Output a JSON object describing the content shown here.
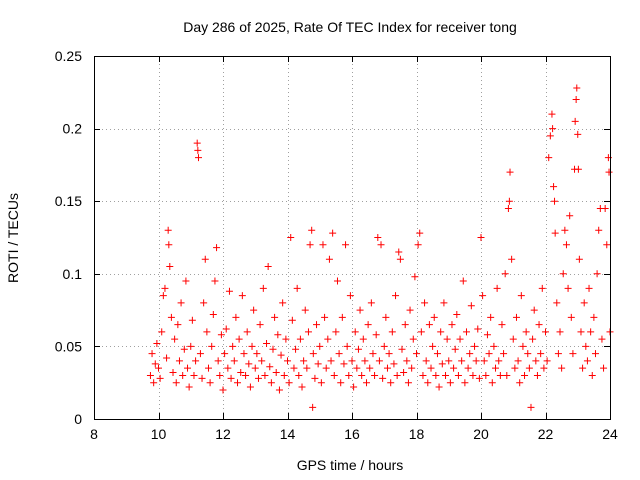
{
  "chart_data": {
    "type": "scatter",
    "title": "Day 286 of 2025, Rate Of TEC Index for receiver tong",
    "xlabel": "GPS time / hours",
    "ylabel": "ROTI / TECUs",
    "xlim": [
      8,
      24
    ],
    "ylim": [
      0,
      0.25
    ],
    "xticks": [
      8,
      10,
      12,
      14,
      16,
      18,
      20,
      22,
      24
    ],
    "xtick_labels": [
      "8",
      "10",
      "12",
      "14",
      "16",
      "18",
      "20",
      "22",
      "24"
    ],
    "yticks": [
      0,
      0.05,
      0.1,
      0.15,
      0.2,
      0.25
    ],
    "ytick_labels": [
      "0",
      "0.05",
      "0.1",
      "0.15",
      "0.2",
      "0.25"
    ],
    "grid": true,
    "marker": "+",
    "color": "#ff0000",
    "series": [
      {
        "name": "ROTI",
        "points": [
          [
            9.75,
            0.03
          ],
          [
            9.8,
            0.045
          ],
          [
            9.85,
            0.025
          ],
          [
            9.9,
            0.038
          ],
          [
            9.95,
            0.052
          ],
          [
            10.0,
            0.035
          ],
          [
            10.05,
            0.028
          ],
          [
            10.1,
            0.06
          ],
          [
            10.15,
            0.085
          ],
          [
            10.2,
            0.09
          ],
          [
            10.25,
            0.042
          ],
          [
            10.3,
            0.13
          ],
          [
            10.32,
            0.12
          ],
          [
            10.35,
            0.105
          ],
          [
            10.4,
            0.07
          ],
          [
            10.45,
            0.032
          ],
          [
            10.5,
            0.055
          ],
          [
            10.55,
            0.025
          ],
          [
            10.6,
            0.065
          ],
          [
            10.65,
            0.04
          ],
          [
            10.7,
            0.08
          ],
          [
            10.75,
            0.03
          ],
          [
            10.8,
            0.048
          ],
          [
            10.85,
            0.095
          ],
          [
            10.9,
            0.035
          ],
          [
            10.95,
            0.022
          ],
          [
            11.0,
            0.05
          ],
          [
            11.05,
            0.068
          ],
          [
            11.1,
            0.03
          ],
          [
            11.15,
            0.04
          ],
          [
            11.2,
            0.19
          ],
          [
            11.22,
            0.185
          ],
          [
            11.24,
            0.18
          ],
          [
            11.3,
            0.045
          ],
          [
            11.35,
            0.028
          ],
          [
            11.4,
            0.08
          ],
          [
            11.45,
            0.11
          ],
          [
            11.5,
            0.06
          ],
          [
            11.55,
            0.035
          ],
          [
            11.6,
            0.025
          ],
          [
            11.65,
            0.05
          ],
          [
            11.7,
            0.072
          ],
          [
            11.75,
            0.095
          ],
          [
            11.8,
            0.118
          ],
          [
            11.85,
            0.04
          ],
          [
            11.9,
            0.03
          ],
          [
            11.95,
            0.058
          ],
          [
            12.0,
            0.02
          ],
          [
            12.05,
            0.045
          ],
          [
            12.1,
            0.062
          ],
          [
            12.15,
            0.035
          ],
          [
            12.2,
            0.088
          ],
          [
            12.25,
            0.028
          ],
          [
            12.3,
            0.05
          ],
          [
            12.35,
            0.04
          ],
          [
            12.4,
            0.07
          ],
          [
            12.45,
            0.025
          ],
          [
            12.5,
            0.055
          ],
          [
            12.55,
            0.032
          ],
          [
            12.6,
            0.085
          ],
          [
            12.65,
            0.045
          ],
          [
            12.7,
            0.03
          ],
          [
            12.75,
            0.06
          ],
          [
            12.8,
            0.038
          ],
          [
            12.85,
            0.022
          ],
          [
            12.9,
            0.05
          ],
          [
            12.95,
            0.075
          ],
          [
            13.0,
            0.035
          ],
          [
            13.05,
            0.045
          ],
          [
            13.1,
            0.028
          ],
          [
            13.15,
            0.065
          ],
          [
            13.2,
            0.04
          ],
          [
            13.25,
            0.09
          ],
          [
            13.3,
            0.03
          ],
          [
            13.35,
            0.052
          ],
          [
            13.4,
            0.105
          ],
          [
            13.45,
            0.036
          ],
          [
            13.5,
            0.025
          ],
          [
            13.55,
            0.048
          ],
          [
            13.6,
            0.07
          ],
          [
            13.65,
            0.032
          ],
          [
            13.7,
            0.058
          ],
          [
            13.75,
            0.02
          ],
          [
            13.8,
            0.044
          ],
          [
            13.85,
            0.08
          ],
          [
            13.9,
            0.03
          ],
          [
            13.95,
            0.055
          ],
          [
            14.0,
            0.04
          ],
          [
            14.05,
            0.025
          ],
          [
            14.1,
            0.125
          ],
          [
            14.15,
            0.068
          ],
          [
            14.2,
            0.035
          ],
          [
            14.25,
            0.048
          ],
          [
            14.3,
            0.09
          ],
          [
            14.35,
            0.03
          ],
          [
            14.4,
            0.055
          ],
          [
            14.45,
            0.022
          ],
          [
            14.5,
            0.04
          ],
          [
            14.55,
            0.075
          ],
          [
            14.6,
            0.035
          ],
          [
            14.65,
            0.06
          ],
          [
            14.7,
            0.12
          ],
          [
            14.75,
            0.13
          ],
          [
            14.78,
            0.008
          ],
          [
            14.8,
            0.045
          ],
          [
            14.85,
            0.028
          ],
          [
            14.9,
            0.065
          ],
          [
            14.95,
            0.038
          ],
          [
            15.0,
            0.05
          ],
          [
            15.05,
            0.025
          ],
          [
            15.1,
            0.12
          ],
          [
            15.15,
            0.07
          ],
          [
            15.2,
            0.035
          ],
          [
            15.25,
            0.055
          ],
          [
            15.3,
            0.11
          ],
          [
            15.35,
            0.04
          ],
          [
            15.4,
            0.128
          ],
          [
            15.45,
            0.03
          ],
          [
            15.5,
            0.06
          ],
          [
            15.55,
            0.095
          ],
          [
            15.6,
            0.045
          ],
          [
            15.65,
            0.025
          ],
          [
            15.7,
            0.07
          ],
          [
            15.75,
            0.038
          ],
          [
            15.8,
            0.12
          ],
          [
            15.85,
            0.05
          ],
          [
            15.9,
            0.03
          ],
          [
            15.95,
            0.085
          ],
          [
            16.0,
            0.04
          ],
          [
            16.05,
            0.022
          ],
          [
            16.1,
            0.06
          ],
          [
            16.15,
            0.035
          ],
          [
            16.2,
            0.048
          ],
          [
            16.25,
            0.075
          ],
          [
            16.3,
            0.03
          ],
          [
            16.35,
            0.055
          ],
          [
            16.4,
            0.04
          ],
          [
            16.45,
            0.025
          ],
          [
            16.5,
            0.065
          ],
          [
            16.55,
            0.035
          ],
          [
            16.6,
            0.08
          ],
          [
            16.65,
            0.045
          ],
          [
            16.7,
            0.03
          ],
          [
            16.75,
            0.058
          ],
          [
            16.8,
            0.125
          ],
          [
            16.85,
            0.04
          ],
          [
            16.9,
            0.12
          ],
          [
            16.95,
            0.028
          ],
          [
            17.0,
            0.05
          ],
          [
            17.05,
            0.07
          ],
          [
            17.1,
            0.035
          ],
          [
            17.15,
            0.045
          ],
          [
            17.2,
            0.025
          ],
          [
            17.25,
            0.06
          ],
          [
            17.3,
            0.038
          ],
          [
            17.35,
            0.085
          ],
          [
            17.4,
            0.03
          ],
          [
            17.45,
            0.115
          ],
          [
            17.5,
            0.11
          ],
          [
            17.55,
            0.048
          ],
          [
            17.6,
            0.032
          ],
          [
            17.65,
            0.065
          ],
          [
            17.7,
            0.04
          ],
          [
            17.75,
            0.025
          ],
          [
            17.8,
            0.075
          ],
          [
            17.85,
            0.035
          ],
          [
            17.9,
            0.055
          ],
          [
            17.95,
            0.098
          ],
          [
            18.0,
            0.045
          ],
          [
            18.05,
            0.12
          ],
          [
            18.1,
            0.128
          ],
          [
            18.15,
            0.06
          ],
          [
            18.2,
            0.03
          ],
          [
            18.25,
            0.08
          ],
          [
            18.3,
            0.04
          ],
          [
            18.35,
            0.025
          ],
          [
            18.4,
            0.065
          ],
          [
            18.45,
            0.035
          ],
          [
            18.5,
            0.05
          ],
          [
            18.55,
            0.07
          ],
          [
            18.6,
            0.03
          ],
          [
            18.65,
            0.045
          ],
          [
            18.7,
            0.022
          ],
          [
            18.75,
            0.06
          ],
          [
            18.8,
            0.038
          ],
          [
            18.85,
            0.08
          ],
          [
            18.9,
            0.03
          ],
          [
            18.95,
            0.055
          ],
          [
            19.0,
            0.04
          ],
          [
            19.05,
            0.025
          ],
          [
            19.1,
            0.065
          ],
          [
            19.15,
            0.035
          ],
          [
            19.2,
            0.048
          ],
          [
            19.25,
            0.072
          ],
          [
            19.3,
            0.03
          ],
          [
            19.35,
            0.055
          ],
          [
            19.4,
            0.04
          ],
          [
            19.45,
            0.095
          ],
          [
            19.5,
            0.025
          ],
          [
            19.55,
            0.06
          ],
          [
            19.6,
            0.035
          ],
          [
            19.65,
            0.045
          ],
          [
            19.7,
            0.078
          ],
          [
            19.75,
            0.03
          ],
          [
            19.8,
            0.05
          ],
          [
            19.85,
            0.04
          ],
          [
            19.9,
            0.062
          ],
          [
            19.95,
            0.028
          ],
          [
            20.0,
            0.125
          ],
          [
            20.05,
            0.085
          ],
          [
            20.1,
            0.04
          ],
          [
            20.15,
            0.03
          ],
          [
            20.2,
            0.058
          ],
          [
            20.25,
            0.045
          ],
          [
            20.3,
            0.07
          ],
          [
            20.35,
            0.025
          ],
          [
            20.4,
            0.05
          ],
          [
            20.45,
            0.035
          ],
          [
            20.5,
            0.09
          ],
          [
            20.55,
            0.04
          ],
          [
            20.6,
            0.03
          ],
          [
            20.65,
            0.065
          ],
          [
            20.7,
            0.045
          ],
          [
            20.75,
            0.1
          ],
          [
            20.8,
            0.03
          ],
          [
            20.85,
            0.145
          ],
          [
            20.88,
            0.15
          ],
          [
            20.9,
            0.17
          ],
          [
            20.95,
            0.11
          ],
          [
            21.0,
            0.055
          ],
          [
            21.05,
            0.035
          ],
          [
            21.1,
            0.07
          ],
          [
            21.15,
            0.04
          ],
          [
            21.2,
            0.025
          ],
          [
            21.25,
            0.085
          ],
          [
            21.3,
            0.05
          ],
          [
            21.35,
            0.03
          ],
          [
            21.4,
            0.06
          ],
          [
            21.45,
            0.045
          ],
          [
            21.5,
            0.035
          ],
          [
            21.55,
            0.008
          ],
          [
            21.6,
            0.055
          ],
          [
            21.65,
            0.075
          ],
          [
            21.7,
            0.04
          ],
          [
            21.75,
            0.03
          ],
          [
            21.8,
            0.065
          ],
          [
            21.85,
            0.045
          ],
          [
            21.9,
            0.09
          ],
          [
            21.95,
            0.035
          ],
          [
            22.0,
            0.06
          ],
          [
            22.05,
            0.04
          ],
          [
            22.1,
            0.18
          ],
          [
            22.15,
            0.195
          ],
          [
            22.2,
            0.21
          ],
          [
            22.22,
            0.2
          ],
          [
            22.25,
            0.16
          ],
          [
            22.28,
            0.15
          ],
          [
            22.3,
            0.128
          ],
          [
            22.35,
            0.08
          ],
          [
            22.4,
            0.045
          ],
          [
            22.45,
            0.06
          ],
          [
            22.5,
            0.035
          ],
          [
            22.55,
            0.1
          ],
          [
            22.6,
            0.13
          ],
          [
            22.65,
            0.12
          ],
          [
            22.7,
            0.09
          ],
          [
            22.75,
            0.14
          ],
          [
            22.8,
            0.07
          ],
          [
            22.85,
            0.045
          ],
          [
            22.9,
            0.172
          ],
          [
            22.92,
            0.205
          ],
          [
            22.95,
            0.22
          ],
          [
            22.97,
            0.228
          ],
          [
            23.0,
            0.196
          ],
          [
            23.02,
            0.172
          ],
          [
            23.05,
            0.11
          ],
          [
            23.1,
            0.06
          ],
          [
            23.15,
            0.035
          ],
          [
            23.2,
            0.08
          ],
          [
            23.25,
            0.05
          ],
          [
            23.3,
            0.04
          ],
          [
            23.35,
            0.09
          ],
          [
            23.4,
            0.06
          ],
          [
            23.45,
            0.03
          ],
          [
            23.5,
            0.07
          ],
          [
            23.55,
            0.045
          ],
          [
            23.6,
            0.1
          ],
          [
            23.65,
            0.13
          ],
          [
            23.7,
            0.145
          ],
          [
            23.75,
            0.055
          ],
          [
            23.8,
            0.035
          ],
          [
            23.85,
            0.145
          ],
          [
            23.9,
            0.12
          ],
          [
            23.95,
            0.18
          ],
          [
            23.97,
            0.17
          ],
          [
            24.0,
            0.06
          ]
        ]
      }
    ]
  }
}
